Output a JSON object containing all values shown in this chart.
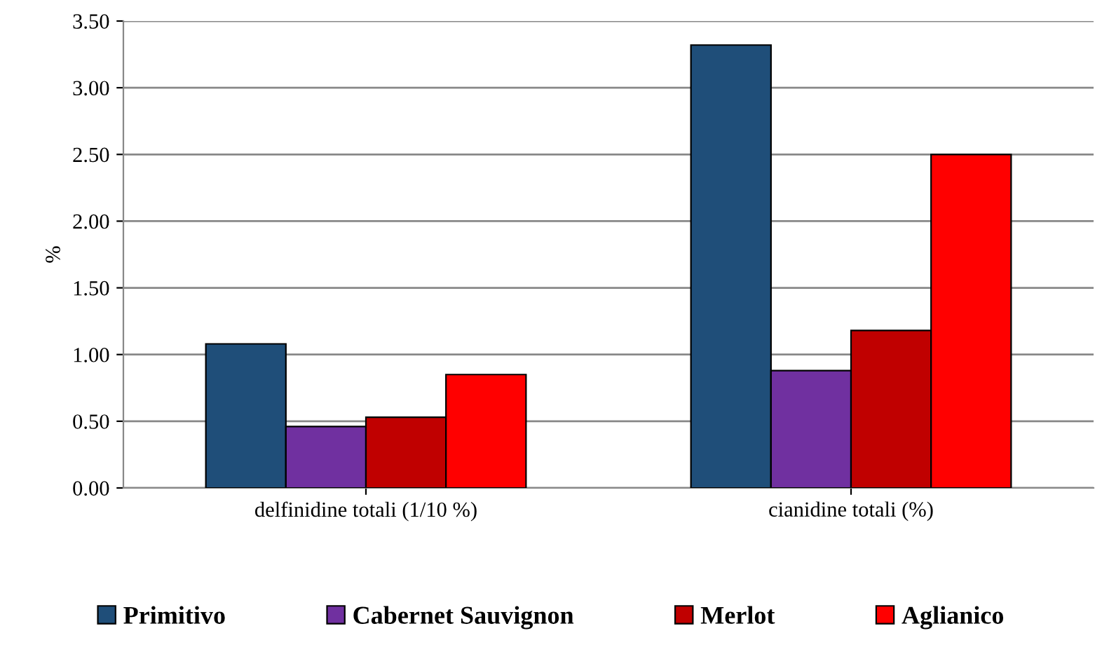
{
  "chart_data": {
    "type": "bar",
    "ylabel": "%",
    "categories": [
      "delfinidine totali (1/10 %)",
      "cianidine totali (%)"
    ],
    "series": [
      {
        "name": "Primitivo",
        "color": "#1f4e79",
        "values": [
          1.08,
          3.32
        ]
      },
      {
        "name": "Cabernet Sauvignon",
        "color": "#7030a0",
        "values": [
          0.46,
          0.88
        ]
      },
      {
        "name": "Merlot",
        "color": "#c00000",
        "values": [
          0.53,
          1.18
        ]
      },
      {
        "name": "Aglianico",
        "color": "#ff0000",
        "values": [
          0.85,
          2.5
        ]
      }
    ],
    "ylim": [
      0,
      3.5
    ],
    "yticks": [
      {
        "value": 0,
        "label": "0.00"
      },
      {
        "value": 0.5,
        "label": "0.50"
      },
      {
        "value": 1,
        "label": "1.00"
      },
      {
        "value": 1.5,
        "label": "1.50"
      },
      {
        "value": 2,
        "label": "2.00"
      },
      {
        "value": 2.5,
        "label": "2.50"
      },
      {
        "value": 3,
        "label": "3.00"
      },
      {
        "value": 3.5,
        "label": "3.50"
      }
    ],
    "grid": "y",
    "legend": "bottom"
  }
}
